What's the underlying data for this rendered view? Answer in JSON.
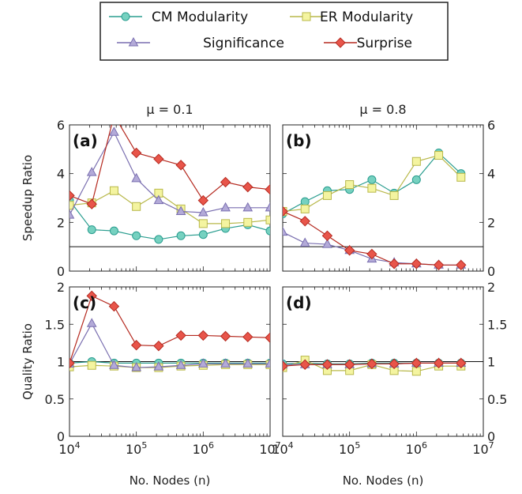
{
  "legend": [
    {
      "name": "CM Modularity",
      "color": "#2a9d8f",
      "fill": "#76d1c0",
      "marker": "circle"
    },
    {
      "name": "ER Modularity",
      "color": "#b8b84a",
      "fill": "#f4f4a0",
      "marker": "square"
    },
    {
      "name": "Significance",
      "color": "#7a6fb0",
      "fill": "#b3aad8",
      "marker": "triangle"
    },
    {
      "name": "Surprise",
      "color": "#b52a20",
      "fill": "#e8554a",
      "marker": "diamond"
    }
  ],
  "column_titles": [
    "μ = 0.1",
    "μ = 0.8"
  ],
  "x_axis_label": "No. Nodes (n)",
  "x_tick_labels": [
    "10^4",
    "10^5",
    "10^6",
    "10^7"
  ],
  "chart_data": [
    {
      "panel": "(a)",
      "type": "line",
      "mu": "μ = 0.1",
      "ylabel": "Speedup Ratio",
      "xscale": "log",
      "xlim": [
        10000,
        10000000
      ],
      "ylim": [
        0,
        6
      ],
      "yticks": [
        0,
        2,
        4,
        6
      ],
      "reference_line": 1,
      "x": [
        10000,
        21544,
        46416,
        100000,
        215443,
        464159,
        1000000,
        2154435,
        4641589,
        10000000
      ],
      "series": [
        {
          "name": "CM Modularity",
          "values": [
            2.9,
            1.7,
            1.65,
            1.45,
            1.3,
            1.45,
            1.5,
            1.75,
            1.9,
            1.65
          ]
        },
        {
          "name": "ER Modularity",
          "values": [
            2.7,
            2.8,
            3.3,
            2.65,
            3.2,
            2.55,
            1.95,
            1.95,
            2.0,
            2.1
          ]
        },
        {
          "name": "Significance",
          "values": [
            2.3,
            4.05,
            5.7,
            3.8,
            2.9,
            2.45,
            2.4,
            2.6,
            2.6,
            2.6
          ]
        },
        {
          "name": "Surprise",
          "values": [
            3.1,
            2.75,
            6.4,
            4.85,
            4.6,
            4.35,
            2.9,
            3.65,
            3.45,
            3.35
          ]
        }
      ]
    },
    {
      "panel": "(b)",
      "type": "line",
      "mu": "μ = 0.8",
      "ylabel": "",
      "xscale": "log",
      "xlim": [
        10000,
        10000000
      ],
      "ylim": [
        0,
        6
      ],
      "yticks": [
        0,
        2,
        4,
        6
      ],
      "reference_line": 1,
      "x": [
        10000,
        21544,
        46416,
        100000,
        215443,
        464159,
        1000000,
        2154435,
        4641589
      ],
      "series": [
        {
          "name": "CM Modularity",
          "values": [
            2.35,
            2.85,
            3.3,
            3.35,
            3.75,
            3.2,
            3.75,
            4.85,
            4.0
          ]
        },
        {
          "name": "ER Modularity",
          "values": [
            2.45,
            2.55,
            3.1,
            3.55,
            3.4,
            3.1,
            4.5,
            4.75,
            3.85
          ]
        },
        {
          "name": "Significance",
          "values": [
            1.6,
            1.15,
            1.1,
            0.85,
            0.5,
            0.35,
            0.3,
            0.25,
            0.25
          ]
        },
        {
          "name": "Surprise",
          "values": [
            2.45,
            2.05,
            1.45,
            0.85,
            0.7,
            0.3,
            0.3,
            0.25,
            0.25
          ]
        }
      ]
    },
    {
      "panel": "(c)",
      "type": "line",
      "mu": "μ = 0.1",
      "ylabel": "Quality Ratio",
      "xscale": "log",
      "xlim": [
        10000,
        10000000
      ],
      "ylim": [
        0,
        2
      ],
      "yticks": [
        0,
        0.5,
        1,
        1.5,
        2
      ],
      "reference_line": 1,
      "x": [
        10000,
        21544,
        46416,
        100000,
        215443,
        464159,
        1000000,
        2154435,
        4641589,
        10000000
      ],
      "series": [
        {
          "name": "CM Modularity",
          "values": [
            0.98,
            1.0,
            0.98,
            0.98,
            0.98,
            0.98,
            0.98,
            0.98,
            0.98,
            0.98
          ]
        },
        {
          "name": "ER Modularity",
          "values": [
            0.93,
            0.95,
            0.94,
            0.92,
            0.92,
            0.94,
            0.95,
            0.96,
            0.96,
            0.96
          ]
        },
        {
          "name": "Significance",
          "values": [
            0.97,
            1.51,
            0.95,
            0.92,
            0.93,
            0.95,
            0.97,
            0.97,
            0.97,
            0.97
          ]
        },
        {
          "name": "Surprise",
          "values": [
            0.98,
            1.88,
            1.74,
            1.22,
            1.21,
            1.35,
            1.35,
            1.34,
            1.33,
            1.32
          ]
        }
      ]
    },
    {
      "panel": "(d)",
      "type": "line",
      "mu": "μ = 0.8",
      "ylabel": "",
      "xscale": "log",
      "xlim": [
        10000,
        10000000
      ],
      "ylim": [
        0,
        2
      ],
      "yticks": [
        0,
        0.5,
        1,
        1.5,
        2
      ],
      "reference_line": 1,
      "x": [
        10000,
        21544,
        46416,
        100000,
        215443,
        464159,
        1000000,
        2154435,
        4641589
      ],
      "series": [
        {
          "name": "CM Modularity",
          "values": [
            0.97,
            0.98,
            0.97,
            0.97,
            0.98,
            0.98,
            0.98,
            0.98,
            0.98
          ]
        },
        {
          "name": "ER Modularity",
          "values": [
            0.92,
            1.02,
            0.88,
            0.88,
            0.96,
            0.88,
            0.87,
            0.94,
            0.94
          ]
        },
        {
          "name": "Significance",
          "values": [
            0.96,
            0.96,
            0.96,
            0.96,
            0.97,
            0.97,
            0.98,
            0.98,
            0.98
          ]
        },
        {
          "name": "Surprise",
          "values": [
            0.94,
            0.96,
            0.96,
            0.96,
            0.97,
            0.97,
            0.98,
            0.98,
            0.98
          ]
        }
      ]
    }
  ]
}
